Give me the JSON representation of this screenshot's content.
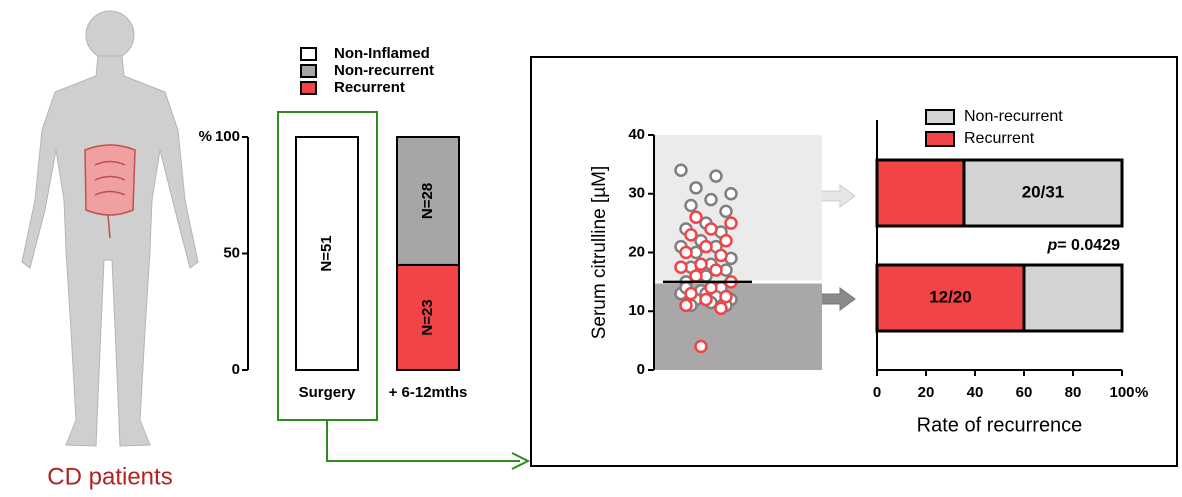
{
  "figure": {
    "caption": "CD patients"
  },
  "chart_data": [
    {
      "type": "bar",
      "stacked": true,
      "categories": [
        "Surgery",
        "+ 6-12mths"
      ],
      "series": [
        {
          "name": "Non-Inflamed",
          "color": "#ffffff",
          "values": [
            100,
            null
          ],
          "labels": [
            "N=51",
            null
          ]
        },
        {
          "name": "Non-recurrent",
          "color": "#a6a5a7",
          "values": [
            null,
            54.9
          ],
          "labels": [
            null,
            "N=28"
          ]
        },
        {
          "name": "Recurrent",
          "color": "#f24346",
          "values": [
            null,
            45.1
          ],
          "labels": [
            null,
            "N=23"
          ]
        }
      ],
      "ylim": [
        0,
        100
      ],
      "yticks": [
        0,
        50,
        100
      ],
      "y_unit": "%",
      "legend": "top"
    },
    {
      "type": "scatter",
      "ylabel": "Serum citrulline [µM]",
      "ylim": [
        0,
        40
      ],
      "yticks": [
        0,
        10,
        20,
        30,
        40
      ],
      "cutoff": 14.8,
      "median": 15,
      "series": [
        {
          "color": "#7f7f7f",
          "values": [
            34,
            33,
            31,
            30,
            29,
            28,
            27,
            25,
            24,
            23.5,
            22,
            21,
            21,
            20,
            19,
            18,
            17.5,
            17,
            16,
            15,
            14,
            13.5,
            13,
            12.5,
            12,
            12,
            11.5,
            11,
            11,
            13,
            14
          ]
        },
        {
          "color": "#f24346",
          "values": [
            26,
            25,
            24,
            23,
            22,
            21,
            20,
            19.5,
            18,
            17.5,
            17,
            16,
            15,
            14,
            13,
            12.5,
            12,
            11,
            10.5,
            4
          ]
        }
      ]
    },
    {
      "type": "hbar",
      "stacked": true,
      "categories": [
        null,
        null
      ],
      "series": [
        {
          "name": "Non-recurrent",
          "color": "#d4d4d4",
          "values": [
            64.5,
            40
          ],
          "labels": [
            "20/31",
            null
          ]
        },
        {
          "name": "Recurrent",
          "color": "#f24346",
          "values": [
            35.5,
            60
          ],
          "labels": [
            null,
            "12/20"
          ]
        }
      ],
      "xlim": [
        0,
        100
      ],
      "xticks": [
        0,
        20,
        40,
        60,
        80,
        100
      ],
      "x_unit": "%",
      "xlabel": "Rate of recurrence",
      "annotation": {
        "italic": "p",
        "text": "= 0.0429"
      },
      "legend": "top"
    }
  ]
}
